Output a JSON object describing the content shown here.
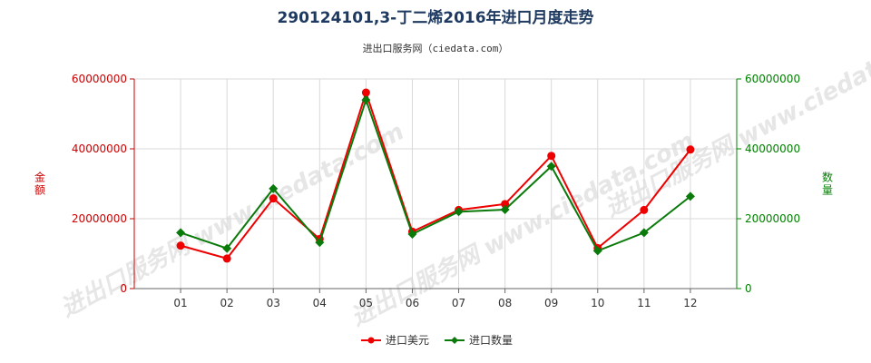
{
  "chart_data": {
    "type": "line",
    "title": "290124101,3-丁二烯2016年进口月度走势",
    "subtitle": "进出口服务网（ciedata.com）",
    "watermark": "进出口服务网 www.ciedata.com",
    "categories": [
      "01",
      "02",
      "03",
      "04",
      "05",
      "06",
      "07",
      "08",
      "09",
      "10",
      "11",
      "12"
    ],
    "y_left": {
      "label": "金额",
      "min": 0,
      "max": 60000000,
      "ticks": [
        "0",
        "20000000",
        "40000000",
        "60000000"
      ],
      "color": "#cc0000"
    },
    "y_right": {
      "label": "数量",
      "min": 0,
      "max": 60000000,
      "ticks": [
        "0",
        "20000000",
        "40000000",
        "60000000"
      ],
      "color": "#008000"
    },
    "grid": true,
    "legend_position": "bottom-center",
    "series": [
      {
        "name": "进口美元",
        "color": "#ee0000",
        "marker": "circle",
        "axis": "left",
        "values": [
          12300000,
          8600000,
          25800000,
          14200000,
          56100000,
          16300000,
          22500000,
          24200000,
          38000000,
          11600000,
          22500000,
          39800000
        ]
      },
      {
        "name": "进口数量",
        "color": "#0a7a0a",
        "marker": "diamond",
        "axis": "right",
        "values": [
          16000000,
          11500000,
          28600000,
          13200000,
          54000000,
          15600000,
          22000000,
          22600000,
          35000000,
          10800000,
          16000000,
          26400000
        ]
      }
    ]
  }
}
